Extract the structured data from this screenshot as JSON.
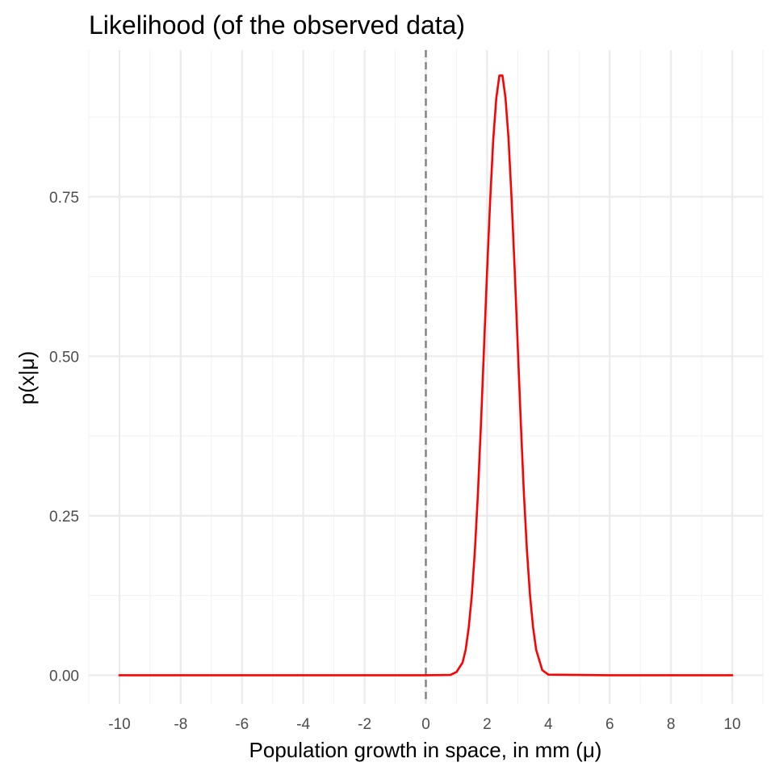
{
  "chart_data": {
    "type": "line",
    "title": "Likelihood (of the observed data)",
    "xlabel": "Population growth in space, in mm (μ)",
    "ylabel": "p(x|μ)",
    "xlim": [
      -11,
      11
    ],
    "ylim": [
      -0.045,
      0.98
    ],
    "x_ticks": [
      -10,
      -8,
      -6,
      -4,
      -2,
      0,
      2,
      4,
      6,
      8,
      10
    ],
    "x_tick_labels": [
      "-10",
      "-8",
      "-6",
      "-4",
      "-2",
      "0",
      "2",
      "4",
      "6",
      "8",
      "10"
    ],
    "y_ticks": [
      0,
      0.25,
      0.5,
      0.75
    ],
    "y_tick_labels": [
      "0.00",
      "0.25",
      "0.50",
      "0.75"
    ],
    "grid": true,
    "legend": "none",
    "reference_line": {
      "x": 0,
      "style": "dashed",
      "color": "#7f7f7f"
    },
    "series": [
      {
        "color": "#ff0000",
        "x": [
          -10,
          -8,
          -6,
          -4,
          -2,
          0,
          0.8,
          1.0,
          1.2,
          1.3,
          1.4,
          1.5,
          1.6,
          1.7,
          1.8,
          1.9,
          2.0,
          2.1,
          2.2,
          2.3,
          2.4,
          2.5,
          2.6,
          2.7,
          2.8,
          2.9,
          3.0,
          3.1,
          3.2,
          3.3,
          3.4,
          3.5,
          3.6,
          3.8,
          4.0,
          6,
          8,
          10
        ],
        "y": [
          0,
          0,
          0,
          0,
          0,
          0,
          0.0005,
          0.005,
          0.02,
          0.04,
          0.075,
          0.125,
          0.195,
          0.285,
          0.395,
          0.515,
          0.635,
          0.745,
          0.84,
          0.905,
          0.94,
          0.94,
          0.905,
          0.84,
          0.745,
          0.635,
          0.515,
          0.395,
          0.285,
          0.195,
          0.125,
          0.075,
          0.04,
          0.008,
          0.001,
          0,
          0,
          0
        ]
      }
    ]
  }
}
